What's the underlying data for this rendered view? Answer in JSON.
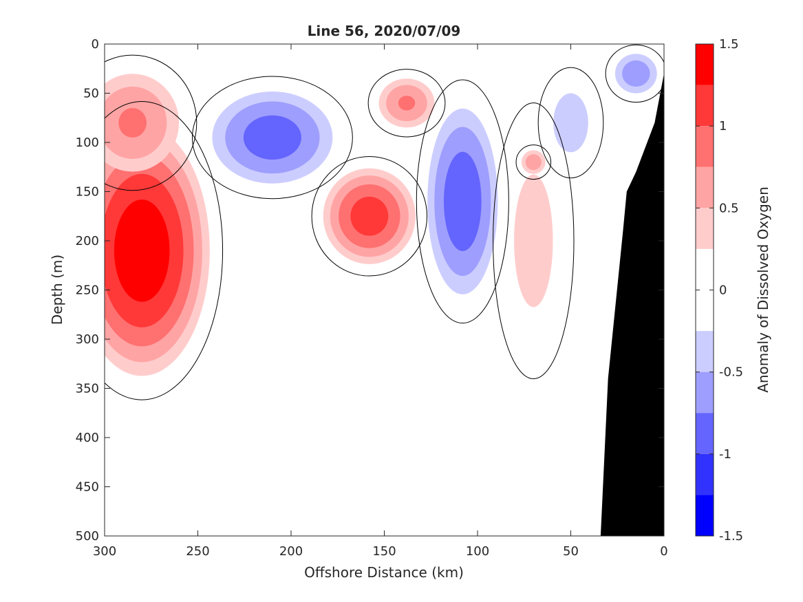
{
  "chart_data": {
    "type": "heatmap",
    "title": "Line 56, 2020/07/09",
    "xlabel": "Offshore Distance (km)",
    "ylabel": "Depth (m)",
    "colorbar_label": "Anomaly of Dissolved Oxygen",
    "xlim": [
      300,
      0
    ],
    "ylim": [
      0,
      500
    ],
    "x_reversed": true,
    "y_reversed": true,
    "x_ticks": [
      "300",
      "250",
      "200",
      "150",
      "100",
      "50",
      "0"
    ],
    "y_ticks": [
      "0",
      "50",
      "100",
      "150",
      "200",
      "250",
      "300",
      "350",
      "400",
      "450",
      "500"
    ],
    "colorbar": {
      "range": [
        -1.5,
        1.5
      ],
      "ticks": [
        "1.5",
        "1",
        "0.5",
        "0",
        "-0.5",
        "-1",
        "-1.5"
      ],
      "levels": [
        {
          "from": 1.25,
          "to": 1.5,
          "color": "#ff0000"
        },
        {
          "from": 1.0,
          "to": 1.25,
          "color": "#ff3838"
        },
        {
          "from": 0.75,
          "to": 1.0,
          "color": "#ff7070"
        },
        {
          "from": 0.5,
          "to": 0.75,
          "color": "#ffa4a4"
        },
        {
          "from": 0.25,
          "to": 0.5,
          "color": "#ffcccc"
        },
        {
          "from": -0.25,
          "to": 0.25,
          "color": "#ffffff"
        },
        {
          "from": -0.5,
          "to": -0.25,
          "color": "#cccdff"
        },
        {
          "from": -0.75,
          "to": -0.5,
          "color": "#9e9efe"
        },
        {
          "from": -1.0,
          "to": -0.75,
          "color": "#6464fe"
        },
        {
          "from": -1.25,
          "to": -1.0,
          "color": "#3232fe"
        },
        {
          "from": -1.5,
          "to": -1.25,
          "color": "#0000ff"
        }
      ]
    },
    "anomalies": [
      {
        "x": 280,
        "y": 210,
        "value": 1.45,
        "rx": 40,
        "ry": 140
      },
      {
        "x": 285,
        "y": 80,
        "value": 0.8,
        "rx": 30,
        "ry": 60
      },
      {
        "x": 210,
        "y": 95,
        "value": -0.9,
        "rx": 38,
        "ry": 55
      },
      {
        "x": 158,
        "y": 175,
        "value": 1.15,
        "rx": 28,
        "ry": 55
      },
      {
        "x": 138,
        "y": 60,
        "value": 0.8,
        "rx": 18,
        "ry": 30
      },
      {
        "x": 108,
        "y": 160,
        "value": -0.95,
        "rx": 22,
        "ry": 110
      },
      {
        "x": 70,
        "y": 200,
        "value": 0.4,
        "rx": 17,
        "ry": 110
      },
      {
        "x": 70,
        "y": 120,
        "value": 0.7,
        "rx": 8,
        "ry": 15
      },
      {
        "x": 50,
        "y": 80,
        "value": -0.45,
        "rx": 14,
        "ry": 45
      },
      {
        "x": 15,
        "y": 30,
        "value": -0.7,
        "rx": 14,
        "ry": 25
      }
    ],
    "bathymetry": [
      [
        34,
        500
      ],
      [
        30,
        340
      ],
      [
        22,
        190
      ],
      [
        20,
        150
      ],
      [
        15,
        130
      ],
      [
        5,
        80
      ],
      [
        0,
        30
      ],
      [
        0,
        500
      ]
    ],
    "bathymetry_color": "#000000"
  }
}
